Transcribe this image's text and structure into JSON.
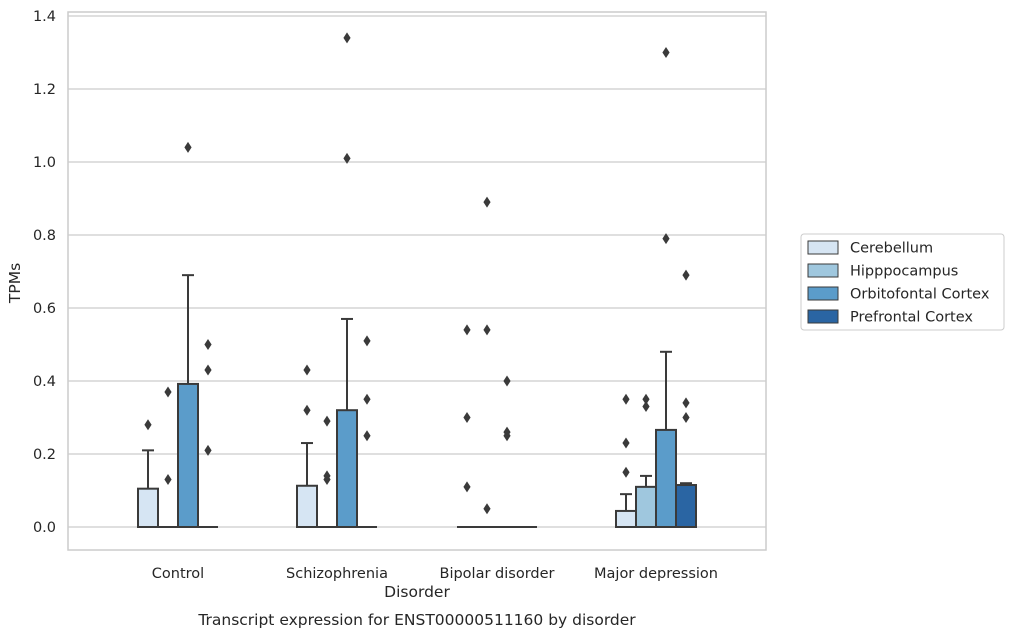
{
  "chart_data": {
    "type": "bar",
    "title": "",
    "caption": "Transcript expression for ENST00000511160 by disorder",
    "xlabel": "Disorder",
    "ylabel": "TPMs",
    "ylim": [
      -0.065,
      1.41
    ],
    "yticks": [
      "0.0",
      "0.2",
      "0.4",
      "0.6",
      "0.8",
      "1.0",
      "1.2",
      "1.4"
    ],
    "grid": "horizontal",
    "legend_position": "right",
    "categories": [
      "Control",
      "Schizophrenia",
      "Bipolar disorder",
      "Major depression"
    ],
    "series": [
      {
        "name": "Cerebellum",
        "color": "#d6e5f3",
        "values": [
          0.105,
          0.113,
          0.0,
          0.044
        ],
        "whisker_top": [
          0.21,
          0.23,
          0.0,
          0.09
        ],
        "outliers": [
          [
            0.28
          ],
          [
            0.32,
            0.43
          ],
          [
            0.11,
            0.3,
            0.54
          ],
          [
            0.15,
            0.23,
            0.35
          ]
        ]
      },
      {
        "name": "Hipppocampus",
        "color": "#9fc7de",
        "values": [
          0.0,
          0.0,
          0.0,
          0.11
        ],
        "whisker_top": [
          0.0,
          0.0,
          0.0,
          0.14
        ],
        "outliers": [
          [
            0.13,
            0.37
          ],
          [
            0.13,
            0.14,
            0.29
          ],
          [
            0.05,
            0.54,
            0.89
          ],
          [
            0.33,
            0.35
          ]
        ]
      },
      {
        "name": "Orbitofontal Cortex",
        "color": "#5b9cca",
        "values": [
          0.392,
          0.32,
          0.0,
          0.266
        ],
        "whisker_top": [
          0.69,
          0.57,
          0.0,
          0.48
        ],
        "outliers": [
          [
            1.04
          ],
          [
            1.01,
            1.34
          ],
          [
            0.25,
            0.26,
            0.4
          ],
          [
            0.79,
            1.3
          ]
        ]
      },
      {
        "name": "Prefrontal Cortex",
        "color": "#2a65a3",
        "values": [
          0.0,
          0.0,
          0.0,
          0.115
        ],
        "whisker_top": [
          0.0,
          0.0,
          0.0,
          0.12
        ],
        "outliers": [
          [
            0.21,
            0.43,
            0.5
          ],
          [
            0.25,
            0.35,
            0.51
          ],
          [],
          [
            0.3,
            0.34,
            0.69
          ]
        ]
      }
    ]
  }
}
